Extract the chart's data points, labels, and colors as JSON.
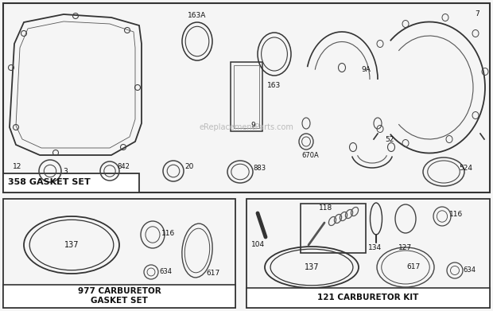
{
  "bg_color": "#f5f5f5",
  "border_color": "#222222",
  "watermark": "eReplacementParts.com",
  "sec1_label": "358 GASKET SET",
  "sec2_label": "977 CARBURETOR\nGASKET SET",
  "sec3_label": "121 CARBURETOR KIT"
}
